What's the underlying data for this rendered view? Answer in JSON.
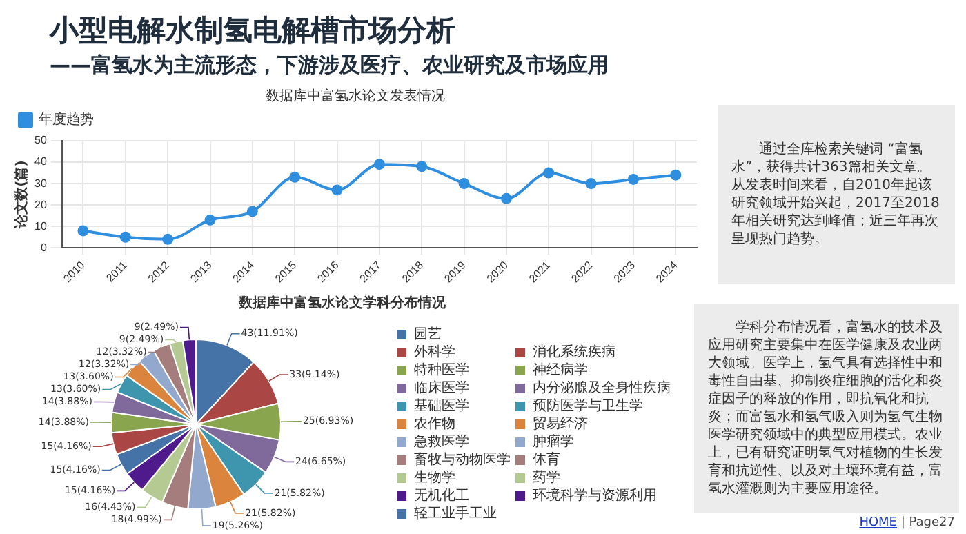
{
  "chart_data": [
    {
      "type": "other",
      "title": "小型电解水制氢电解槽市场分析",
      "subtitle": "——富氢水为主流形态，下游涉及医疗、农业研究及市场应用",
      "annotations": [
        "HOME | Page27"
      ]
    },
    {
      "type": "line",
      "title": "数据库中富氢水论文发表情况",
      "ylabel": "论文数(篇)",
      "categories": [
        "2010",
        "2011",
        "2012",
        "2013",
        "2014",
        "2015",
        "2016",
        "2017",
        "2018",
        "2019",
        "2020",
        "2021",
        "2022",
        "2023",
        "2024"
      ],
      "series": [
        {
          "name": "年度趋势",
          "color": "#2f8ede",
          "values": [
            8,
            5,
            4,
            13,
            17,
            33,
            27,
            39,
            38,
            30,
            23,
            35,
            30,
            32,
            34
          ]
        }
      ],
      "ylim": [
        0,
        50
      ],
      "yticks": [
        0,
        10,
        20,
        30,
        40,
        50
      ],
      "grid": true,
      "legend": "top left",
      "marker": "circle",
      "line_style": "solid"
    },
    {
      "type": "other",
      "annotations": [
        "通过全库检索关键词 “富氢水”，获得共计363篇相关文章。从发表时间来看，自2010年起该研究领域开始兴起，2017至2018年相关研究达到峰值；近三年再次呈现热门趋势。"
      ]
    },
    {
      "type": "pie",
      "title": "数据库中富氢水论文学科分布情况",
      "categories": [
        "园艺",
        "外科学",
        "特种医学",
        "临床医学",
        "基础医学",
        "农作物",
        "急救医学",
        "畜牧与动物医学",
        "生物学",
        "无机化工",
        "轻工业手工业",
        "消化系统疾病",
        "神经病学",
        "内分泌腺及全身性疾病",
        "预防医学与卫生学",
        "贸易经济",
        "肿瘤学",
        "体育",
        "药学",
        "环境科学与资源利用"
      ],
      "values": [
        43,
        33,
        25,
        24,
        21,
        21,
        19,
        18,
        16,
        15,
        15,
        15,
        14,
        14,
        13,
        13,
        12,
        12,
        9,
        9
      ],
      "value_labels": [
        "43(11.91%)",
        "33(9.14%)",
        "25(6.93%)",
        "24(6.65%)",
        "21(5.82%)",
        "21(5.82%)",
        "19(5.26%)",
        "18(4.99%)",
        "16(4.43%)",
        "15(4.16%)",
        "15(4.16%)",
        "15(4.16%)",
        "14(3.88%)",
        "14(3.88%)",
        "13(3.60%)",
        "13(3.60%)",
        "12(3.32%)",
        "12(3.32%)",
        "9(2.49%)",
        "9(2.49%)"
      ],
      "colors": [
        "#4572a7",
        "#aa4643",
        "#89a54e",
        "#80699b",
        "#3d96ae",
        "#db843d",
        "#92a8cd",
        "#a47d7c",
        "#b5ca92",
        "#4f1a8c",
        "#4572a7",
        "#aa4643",
        "#89a54e",
        "#80699b",
        "#3d96ae",
        "#db843d",
        "#92a8cd",
        "#a47d7c",
        "#b5ca92",
        "#4f1a8c"
      ],
      "legend": "right"
    },
    {
      "type": "other",
      "annotations": [
        "学科分布情况看，富氢水的技术及应用研究主要集中在医学健康及农业两大领域。医学上，氢气具有选择性中和毒性自由基、抑制炎症细胞的活化和炎症因子的释放的作用，即抗氧化和抗炎；而富氢水和氢气吸入则为氢气生物医学研究领域中的典型应用模式。农业上，已有研究证明氢气对植物的生长发育和抗逆性、以及对土壤环境有益，富氢水灌溉则为主要应用途径。"
      ]
    }
  ]
}
